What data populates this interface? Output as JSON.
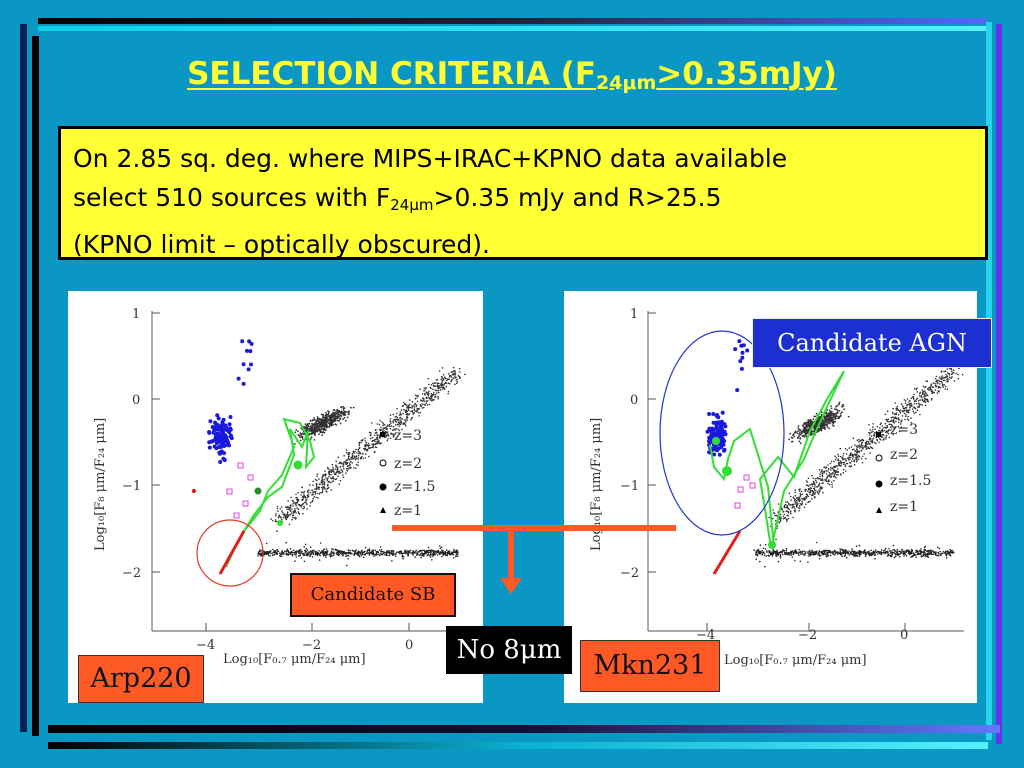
{
  "slide": {
    "title_prefix": "SELECTION CRITERIA (F",
    "title_sub": "24μm",
    "title_suffix": ">0.35mJy)",
    "body_line1": "On 2.85 sq. deg. where MIPS+IRAC+KPNO data available",
    "body_line2_prefix": "select 510 sources with F",
    "body_line2_sub": "24μm",
    "body_line2_suffix": ">0.35 mJy and R>25.5",
    "body_line3": "(KPNO limit – optically obscured)."
  },
  "plots": {
    "y_ticks": [
      "1",
      "0",
      "−1",
      "−2"
    ],
    "x_ticks": [
      "−4",
      "−2",
      "0"
    ],
    "x_label": "Log₁₀[F₀.₇ μm/F₂₄ μm]",
    "y_label": "Log₁₀[F₈ μm/F₂₄ μm]",
    "legend": [
      "z=3",
      "z=2",
      "z=1.5",
      "z=1"
    ]
  },
  "labels": {
    "left_name": "Arp220",
    "right_name": "Mkn231",
    "candidate_sb": "Candidate SB",
    "candidate_agn": "Candidate AGN",
    "no_8um": "No 8μm"
  },
  "colors": {
    "background": "#0a97c4",
    "title": "#ffff33",
    "orange_box": "#ff5a26",
    "agn_box": "#1c2fd0",
    "blue_points": "#1a1adf",
    "green_track": "#33dd33",
    "red_track": "#e02020"
  }
}
